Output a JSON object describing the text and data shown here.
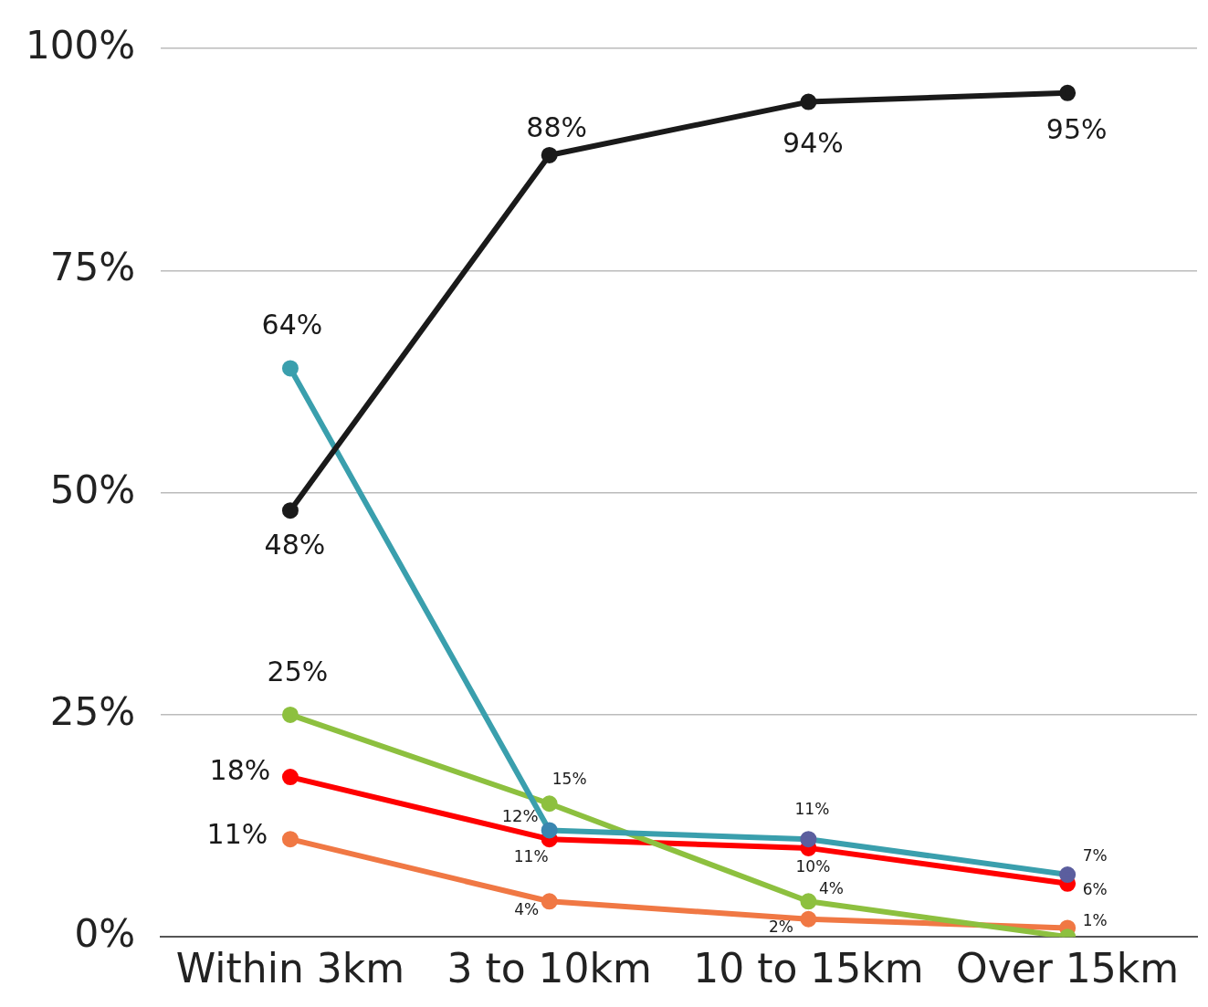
{
  "chart_data": {
    "type": "line",
    "categories": [
      "Within 3km",
      "3 to 10km",
      "10 to 15km",
      "Over 15km"
    ],
    "series": [
      {
        "color": "#1a1a1a",
        "values": [
          48,
          88,
          94,
          95
        ],
        "value_labels": [
          "48%",
          "88%",
          "94%",
          "95%"
        ]
      },
      {
        "color": "#3a9fad",
        "colors": [
          "#3a9fad",
          "#3a86b0",
          "#5b5e9e",
          "#5b5e9e"
        ],
        "values": [
          64,
          12,
          11,
          7
        ],
        "value_labels": [
          "64%",
          "12%",
          "11%",
          "7%"
        ]
      },
      {
        "color": "#8dc03f",
        "values": [
          25,
          15,
          4,
          0
        ],
        "value_labels": [
          "25%",
          "15%",
          "4%",
          null
        ]
      },
      {
        "color": "#ff0000",
        "values": [
          18,
          11,
          10,
          6
        ],
        "value_labels": [
          "18%",
          "11%",
          "10%",
          "6%"
        ]
      },
      {
        "color": "#f07844",
        "values": [
          11,
          4,
          2,
          1
        ],
        "value_labels": [
          "11%",
          "4%",
          "2%",
          "1%"
        ]
      }
    ],
    "ylim": [
      0,
      100
    ],
    "yticks": [
      {
        "value": 0,
        "label": "0%"
      },
      {
        "value": 25,
        "label": "25%"
      },
      {
        "value": 50,
        "label": "50%"
      },
      {
        "value": 75,
        "label": "75%"
      },
      {
        "value": 100,
        "label": "100%"
      }
    ],
    "grid": "y",
    "legend": false,
    "marker": "circle",
    "line_style": "solid"
  }
}
